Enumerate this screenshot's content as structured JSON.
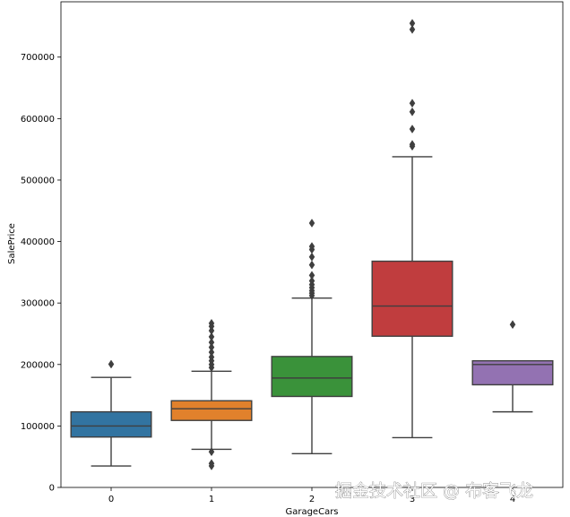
{
  "chart_data": {
    "type": "box",
    "xlabel": "GarageCars",
    "ylabel": "SalePrice",
    "ylim": [
      0,
      790000
    ],
    "yticks": [
      0,
      100000,
      200000,
      300000,
      400000,
      500000,
      600000,
      700000
    ],
    "ytick_labels": [
      "0",
      "100000",
      "200000",
      "300000",
      "400000",
      "500000",
      "600000",
      "700000"
    ],
    "categories": [
      "0",
      "1",
      "2",
      "3",
      "4"
    ],
    "grid": false,
    "legend": "none",
    "boxes": [
      {
        "category": "0",
        "color": "#3274a1",
        "whisker_low": 34900,
        "q1": 82000,
        "median": 100000,
        "q3": 123000,
        "whisker_high": 179000,
        "outliers": [
          200500
        ]
      },
      {
        "category": "1",
        "color": "#e1812c",
        "whisker_low": 62000,
        "q1": 109000,
        "median": 128000,
        "q3": 141000,
        "whisker_high": 189000,
        "outliers": [
          35000,
          39000,
          58000,
          195000,
          200000,
          206000,
          212000,
          220000,
          228000,
          236000,
          245000,
          255000,
          262000,
          267000
        ]
      },
      {
        "category": "2",
        "color": "#3a923a",
        "whisker_low": 55000,
        "q1": 148000,
        "median": 178000,
        "q3": 213000,
        "whisker_high": 308000,
        "outliers": [
          312000,
          316000,
          320000,
          325000,
          330000,
          336000,
          345000,
          362000,
          375000,
          387000,
          392000,
          430000
        ]
      },
      {
        "category": "3",
        "color": "#c03d3e",
        "whisker_low": 81000,
        "q1": 246000,
        "median": 295000,
        "q3": 368000,
        "whisker_high": 538000,
        "outliers": [
          555000,
          558000,
          583000,
          611000,
          625000,
          745000,
          755000
        ]
      },
      {
        "category": "4",
        "color": "#9372b2",
        "whisker_low": 123000,
        "q1": 167000,
        "median": 200000,
        "q3": 206000,
        "whisker_high": 206000,
        "outliers": [
          265000
        ]
      }
    ]
  },
  "watermark": "掘金技术社区 @ 布客飞龙"
}
